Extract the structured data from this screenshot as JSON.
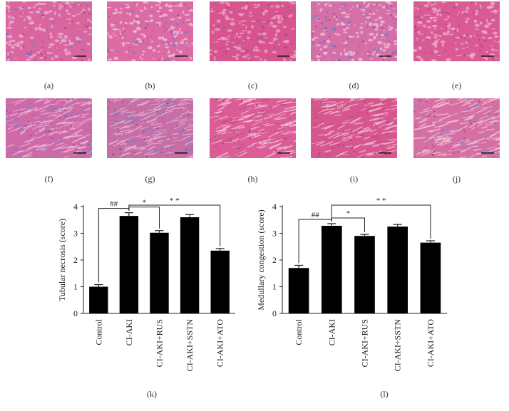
{
  "micrographs": [
    {
      "label": "(a)",
      "base": "#d9669f",
      "accent": "#f1b7d2",
      "stain": "#7f6fc0"
    },
    {
      "label": "(b)",
      "base": "#dc6ba4",
      "accent": "#f4c4da",
      "stain": "#8a73c2"
    },
    {
      "label": "(c)",
      "base": "#d8548f",
      "accent": "#f0a9c8",
      "stain": "#a0609e"
    },
    {
      "label": "(d)",
      "base": "#d46fa7",
      "accent": "#f1c6dc",
      "stain": "#6f7fc2"
    },
    {
      "label": "(e)",
      "base": "#d95a94",
      "accent": "#f2b4cf",
      "stain": "#b05c9a"
    },
    {
      "label": "(f)",
      "base": "#cf6aa8",
      "accent": "#efbfd9",
      "stain": "#6f83c6"
    },
    {
      "label": "(g)",
      "base": "#c76ea7",
      "accent": "#e9b5d3",
      "stain": "#5f8ac6"
    },
    {
      "label": "(h)",
      "base": "#db5c96",
      "accent": "#f5c9dc",
      "stain": "#c8507e"
    },
    {
      "label": "(i)",
      "base": "#d6578f",
      "accent": "#f3c0d6",
      "stain": "#cc4a72"
    },
    {
      "label": "(j)",
      "base": "#d86fa2",
      "accent": "#f2c9dd",
      "stain": "#8c86c8"
    }
  ],
  "chart_data": [
    {
      "type": "bar",
      "panel_label": "(k)",
      "categories": [
        "Control",
        "CI-AKI",
        "CI-AKI+RUS",
        "CI-AKI+SSTN",
        "CI-AKI+ATO"
      ],
      "values": [
        1.0,
        3.65,
        3.02,
        3.6,
        2.35
      ],
      "errors": [
        0.08,
        0.12,
        0.08,
        0.1,
        0.08
      ],
      "ylabel": "Tubular necrosis (score)",
      "ylim": [
        0,
        4
      ],
      "yticks": [
        0,
        1,
        2,
        3,
        4
      ],
      "bar_color": "#000000",
      "significance": [
        {
          "from": 0,
          "to": 1,
          "label": "##"
        },
        {
          "from": 1,
          "to": 2,
          "label": "*"
        },
        {
          "from": 1,
          "to": 4,
          "label": "* *"
        }
      ]
    },
    {
      "type": "bar",
      "panel_label": "(l)",
      "categories": [
        "Control",
        "CI-AKI",
        "CI-AKI+RUS",
        "CI-AKI+SSTN",
        "CI-AKI+ATO"
      ],
      "values": [
        1.7,
        3.28,
        2.9,
        3.25,
        2.65
      ],
      "errors": [
        0.1,
        0.08,
        0.06,
        0.08,
        0.07
      ],
      "ylabel": "Medullary congestion (score)",
      "ylim": [
        0,
        4
      ],
      "yticks": [
        0,
        1,
        2,
        3,
        4
      ],
      "bar_color": "#000000",
      "significance": [
        {
          "from": 0,
          "to": 1,
          "label": "##"
        },
        {
          "from": 1,
          "to": 2,
          "label": "*"
        },
        {
          "from": 1,
          "to": 4,
          "label": "* *"
        }
      ]
    }
  ]
}
